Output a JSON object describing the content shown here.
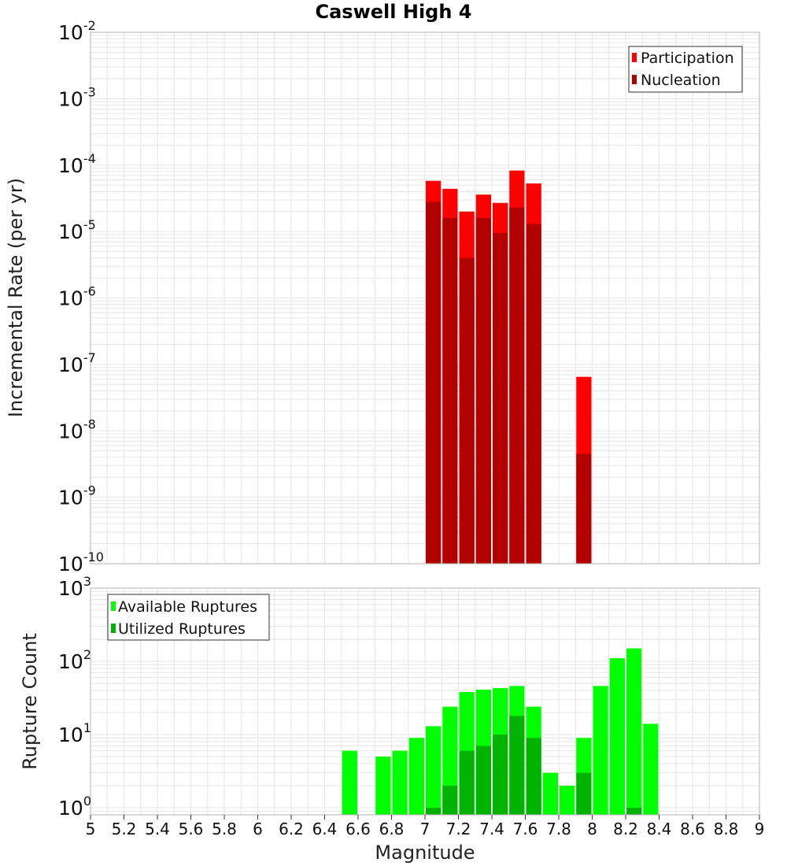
{
  "title": "Caswell High 4",
  "x_axis": {
    "label": "Magnitude",
    "ticks": [
      "5",
      "5.2",
      "5.4",
      "5.6",
      "5.8",
      "6",
      "6.2",
      "6.4",
      "6.6",
      "6.8",
      "7",
      "7.2",
      "7.4",
      "7.6",
      "7.8",
      "8",
      "8.2",
      "8.4",
      "8.6",
      "8.8",
      "9"
    ]
  },
  "colors": {
    "participation": "#ff0000",
    "nucleation": "#b30000",
    "available": "#00ff00",
    "utilized": "#00b300",
    "grid": "#e6e6e6",
    "frame": "#b3b3b3"
  },
  "chart_data": [
    {
      "type": "bar",
      "title": "Caswell High 4",
      "xlabel": "Magnitude",
      "ylabel": "Incremental Rate (per yr)",
      "xlim": [
        5,
        9
      ],
      "ylim": [
        1e-10,
        0.01
      ],
      "yscale": "log",
      "bin_width": 0.1,
      "y_tick_base": "10",
      "y_tick_exponents": [
        "-10",
        "-9",
        "-8",
        "-7",
        "-6",
        "-5",
        "-4",
        "-3",
        "-2"
      ],
      "legend": {
        "position": "top-right"
      },
      "series": [
        {
          "name": "Participation",
          "x": [
            7.05,
            7.15,
            7.25,
            7.35,
            7.45,
            7.55,
            7.65,
            7.95
          ],
          "values": [
            5.8e-05,
            4.4e-05,
            2e-05,
            3.6e-05,
            2.7e-05,
            8.3e-05,
            5.3e-05,
            6.5e-08
          ]
        },
        {
          "name": "Nucleation",
          "x": [
            7.05,
            7.15,
            7.25,
            7.35,
            7.45,
            7.55,
            7.65,
            7.95
          ],
          "values": [
            2.8e-05,
            1.6e-05,
            4e-06,
            1.6e-05,
            9.5e-06,
            2.3e-05,
            1.3e-05,
            4.5e-09
          ]
        }
      ]
    },
    {
      "type": "bar",
      "xlabel": "Magnitude",
      "ylabel": "Rupture Count",
      "xlim": [
        5,
        9
      ],
      "ylim": [
        0.8,
        1000
      ],
      "yscale": "log",
      "bin_width": 0.1,
      "y_tick_base": "10",
      "y_tick_exponents": [
        "0",
        "1",
        "2",
        "3"
      ],
      "legend": {
        "position": "top-left"
      },
      "series": [
        {
          "name": "Available Ruptures",
          "x": [
            6.55,
            6.75,
            6.85,
            6.95,
            7.05,
            7.15,
            7.25,
            7.35,
            7.45,
            7.55,
            7.65,
            7.75,
            7.85,
            7.95,
            8.05,
            8.15,
            8.25,
            8.35
          ],
          "values": [
            6,
            5,
            6,
            9,
            13,
            24,
            38,
            41,
            43,
            46,
            24,
            3,
            2,
            9,
            46,
            110,
            150,
            14
          ]
        },
        {
          "name": "Utilized Ruptures",
          "x": [
            7.05,
            7.15,
            7.25,
            7.35,
            7.45,
            7.55,
            7.65,
            7.95,
            8.25
          ],
          "values": [
            1,
            2,
            6,
            7,
            10,
            18,
            9,
            3,
            1
          ]
        }
      ]
    }
  ]
}
